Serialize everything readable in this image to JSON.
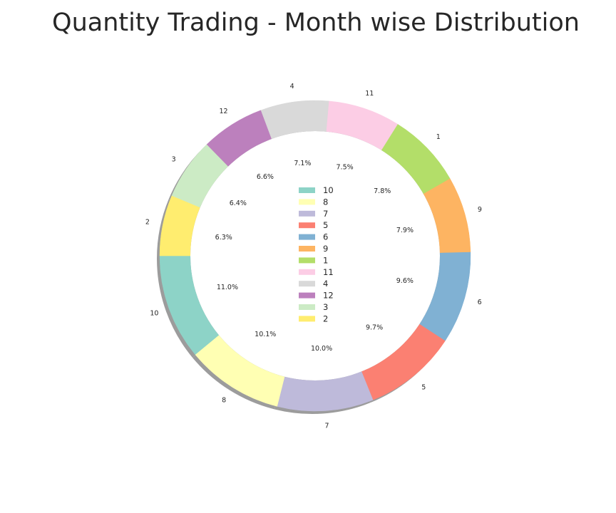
{
  "chart_data": {
    "type": "pie",
    "variant": "donut",
    "title": "Quantity Trading - Month wise Distribution",
    "categories": [
      "10",
      "8",
      "7",
      "5",
      "6",
      "9",
      "1",
      "11",
      "4",
      "12",
      "3",
      "2"
    ],
    "values": [
      11.0,
      10.1,
      10.0,
      9.7,
      9.6,
      7.9,
      7.8,
      7.5,
      7.1,
      6.6,
      6.4,
      6.3
    ],
    "percent_labels": [
      "11.0%",
      "10.1%",
      "10.0%",
      "9.7%",
      "9.6%",
      "7.9%",
      "7.8%",
      "7.5%",
      "7.1%",
      "6.6%",
      "6.4%",
      "6.3%"
    ],
    "colors": [
      "#8dd3c7",
      "#ffffb3",
      "#bebada",
      "#fb8072",
      "#80b1d3",
      "#fdb462",
      "#b3de69",
      "#fccde5",
      "#d9d9d9",
      "#bc80bd",
      "#ccebc5",
      "#ffed6f"
    ],
    "start_angle_deg": 180,
    "direction": "counterclockwise",
    "shadow": true,
    "legend": {
      "position": "center",
      "entries": [
        "10",
        "8",
        "7",
        "5",
        "6",
        "9",
        "1",
        "11",
        "4",
        "12",
        "3",
        "2"
      ]
    }
  }
}
